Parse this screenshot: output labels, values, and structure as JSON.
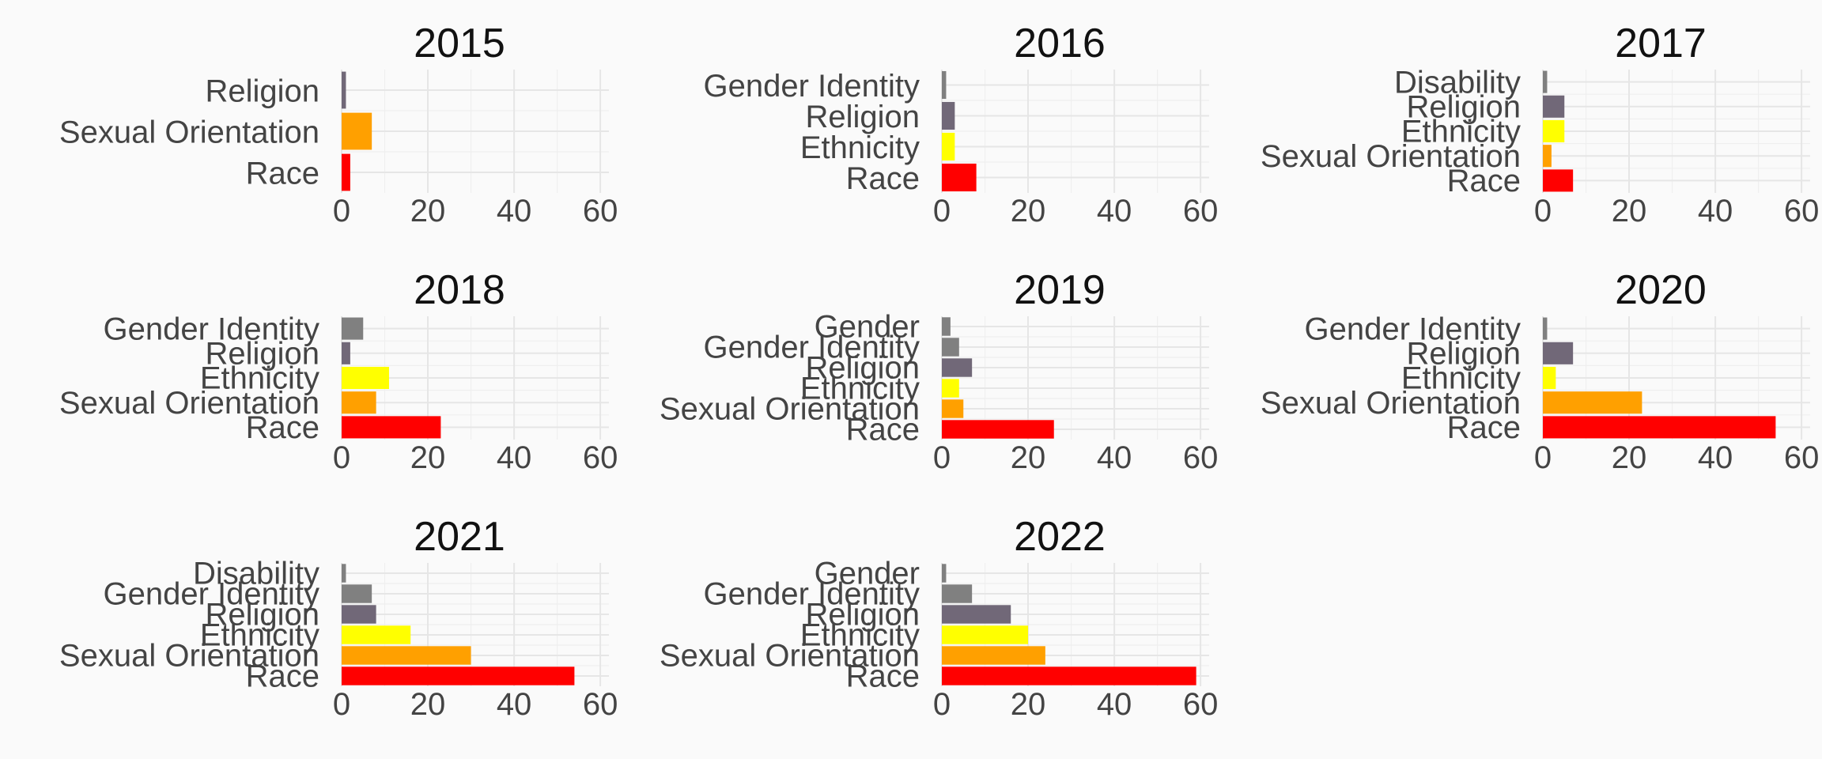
{
  "chart_data": {
    "type": "bar",
    "orientation": "horizontal",
    "grid": true,
    "legend": "none",
    "xlim": [
      0,
      62
    ],
    "x_ticks": [
      0,
      20,
      40,
      60
    ],
    "colors": {
      "Race": "#ff0000",
      "Sexual Orientation": "#ffa000",
      "Ethnicity": "#ffff00",
      "Religion": "#716878",
      "Gender Identity": "#808080",
      "Disability": "#808080",
      "Gender": "#808080"
    },
    "panels": [
      {
        "title": "2015",
        "categories": [
          "Religion",
          "Sexual Orientation",
          "Race"
        ],
        "values": [
          1,
          7,
          2
        ]
      },
      {
        "title": "2016",
        "categories": [
          "Gender Identity",
          "Religion",
          "Ethnicity",
          "Race"
        ],
        "values": [
          1,
          3,
          3,
          8
        ]
      },
      {
        "title": "2017",
        "categories": [
          "Disability",
          "Religion",
          "Ethnicity",
          "Sexual Orientation",
          "Race"
        ],
        "values": [
          1,
          5,
          5,
          2,
          7
        ]
      },
      {
        "title": "2018",
        "categories": [
          "Gender Identity",
          "Religion",
          "Ethnicity",
          "Sexual Orientation",
          "Race"
        ],
        "values": [
          5,
          2,
          11,
          8,
          23
        ]
      },
      {
        "title": "2019",
        "categories": [
          "Gender",
          "Gender Identity",
          "Religion",
          "Ethnicity",
          "Sexual Orientation",
          "Race"
        ],
        "values": [
          2,
          4,
          7,
          4,
          5,
          26
        ]
      },
      {
        "title": "2020",
        "categories": [
          "Gender Identity",
          "Religion",
          "Ethnicity",
          "Sexual Orientation",
          "Race"
        ],
        "values": [
          1,
          7,
          3,
          23,
          54
        ]
      },
      {
        "title": "2021",
        "categories": [
          "Disability",
          "Gender Identity",
          "Religion",
          "Ethnicity",
          "Sexual Orientation",
          "Race"
        ],
        "values": [
          1,
          7,
          8,
          16,
          30,
          54
        ]
      },
      {
        "title": "2022",
        "categories": [
          "Gender",
          "Gender Identity",
          "Religion",
          "Ethnicity",
          "Sexual Orientation",
          "Race"
        ],
        "values": [
          1,
          7,
          16,
          20,
          24,
          59
        ]
      }
    ]
  }
}
